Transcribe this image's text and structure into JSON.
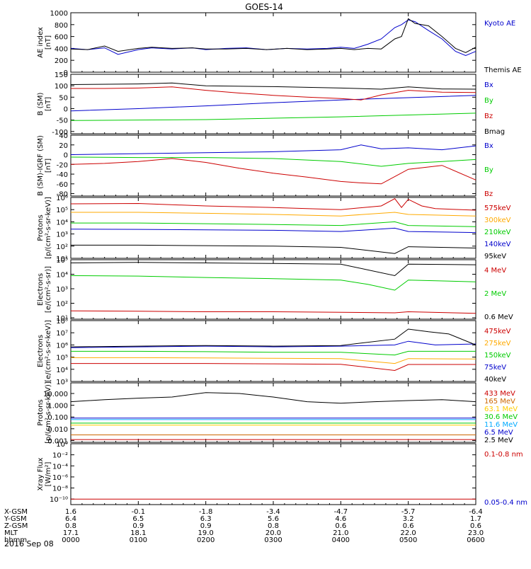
{
  "title": "GOES-14",
  "date_label": "2016 Sep 08",
  "footer": {
    "rows": [
      {
        "label": "X-GSM",
        "values": [
          "1.6",
          "-0.1",
          "-1.8",
          "-3.4",
          "-4.7",
          "-5.7",
          "-6.4"
        ]
      },
      {
        "label": "Y-GSM",
        "values": [
          "6.4",
          "6.5",
          "6.3",
          "5.6",
          "4.6",
          "3.2",
          "1.7"
        ]
      },
      {
        "label": "Z-GSM",
        "values": [
          "0.8",
          "0.9",
          "0.9",
          "0.8",
          "0.6",
          "0.6",
          "0.6"
        ]
      },
      {
        "label": "MLT",
        "values": [
          "17.1",
          "18.1",
          "19.0",
          "20.0",
          "21.0",
          "22.0",
          "23.0"
        ]
      },
      {
        "label": "hhmm",
        "values": [
          "0000",
          "0100",
          "0200",
          "0300",
          "0400",
          "0500",
          "0600"
        ]
      }
    ]
  },
  "chart_data": [
    {
      "type": "line",
      "ylabel": [
        "AE index",
        "[nT]"
      ],
      "ylim": [
        0,
        1000
      ],
      "yticks": [
        "0",
        "100",
        "200",
        "300",
        "400",
        "500",
        "600",
        "700",
        "800",
        "900",
        "1000"
      ],
      "ytick_labels": [
        {
          "value": 0,
          "label": "0"
        },
        {
          "value": 200,
          "label": "200"
        },
        {
          "value": 400,
          "label": "400"
        },
        {
          "value": 600,
          "label": "600"
        },
        {
          "value": 800,
          "label": "800"
        },
        {
          "value": 1000,
          "label": "1000"
        }
      ],
      "series": [
        {
          "name": "Kyoto AE",
          "color": "#0000cc",
          "x": [
            0,
            0.25,
            0.5,
            0.7,
            1.0,
            1.2,
            1.5,
            1.8,
            2.0,
            2.3,
            2.6,
            2.9,
            3.2,
            3.5,
            3.8,
            4.0,
            4.2,
            4.4,
            4.6,
            4.8,
            4.9,
            5.0,
            5.1,
            5.3,
            5.5,
            5.7,
            5.85,
            6.0
          ],
          "y": [
            400,
            380,
            410,
            300,
            380,
            410,
            390,
            410,
            380,
            400,
            410,
            380,
            400,
            390,
            400,
            420,
            400,
            470,
            560,
            750,
            800,
            880,
            850,
            700,
            560,
            350,
            280,
            350
          ]
        },
        {
          "name": "Themis AE",
          "color": "#000000",
          "x": [
            0,
            0.25,
            0.5,
            0.7,
            1.0,
            1.2,
            1.5,
            1.8,
            2.0,
            2.3,
            2.6,
            2.9,
            3.2,
            3.5,
            3.8,
            4.0,
            4.2,
            4.4,
            4.6,
            4.8,
            4.9,
            5.0,
            5.1,
            5.3,
            5.5,
            5.7,
            5.85,
            6.0
          ],
          "y": [
            390,
            380,
            440,
            350,
            400,
            420,
            400,
            410,
            390,
            390,
            400,
            380,
            400,
            380,
            390,
            400,
            380,
            400,
            390,
            560,
            600,
            900,
            820,
            780,
            600,
            400,
            330,
            420
          ]
        }
      ]
    },
    {
      "type": "line",
      "ylabel": [
        "B (SM)",
        "[nT]"
      ],
      "ylim": [
        -110,
        150
      ],
      "ytick_labels": [
        {
          "value": -100,
          "label": "-100"
        },
        {
          "value": -50,
          "label": "-50"
        },
        {
          "value": 0,
          "label": "0"
        },
        {
          "value": 50,
          "label": "50"
        },
        {
          "value": 100,
          "label": "100"
        },
        {
          "value": 150,
          "label": "150"
        }
      ],
      "series": [
        {
          "name": "Bx",
          "color": "#0000cc",
          "x": [
            0,
            1,
            2,
            3,
            4,
            5,
            6
          ],
          "y": [
            -10,
            0,
            12,
            26,
            38,
            48,
            58
          ]
        },
        {
          "name": "By",
          "color": "#00cc00",
          "x": [
            0,
            1,
            2,
            3,
            4,
            5,
            6
          ],
          "y": [
            -52,
            -50,
            -48,
            -42,
            -36,
            -28,
            -20
          ]
        },
        {
          "name": "Bz",
          "color": "#cc0000",
          "x": [
            0,
            0.5,
            1,
            1.5,
            2,
            2.5,
            3,
            3.5,
            4,
            4.3,
            4.6,
            5,
            5.5,
            6
          ],
          "y": [
            88,
            88,
            90,
            95,
            80,
            68,
            58,
            50,
            44,
            38,
            60,
            80,
            72,
            70
          ]
        },
        {
          "name": "Bmag",
          "color": "#000000",
          "x": [
            0,
            1,
            1.5,
            2,
            3,
            4,
            4.6,
            5,
            5.5,
            6
          ],
          "y": [
            105,
            108,
            112,
            100,
            96,
            90,
            85,
            95,
            86,
            85
          ]
        }
      ]
    },
    {
      "type": "line",
      "ylabel": [
        "B (SM)-IGRF (SM)",
        "[nT]"
      ],
      "ylim": [
        -85,
        40
      ],
      "ytick_labels": [
        {
          "value": -80,
          "label": "-80"
        },
        {
          "value": -60,
          "label": "-60"
        },
        {
          "value": -40,
          "label": "-40"
        },
        {
          "value": -20,
          "label": "-20"
        },
        {
          "value": 0,
          "label": "0"
        },
        {
          "value": 20,
          "label": "20"
        },
        {
          "value": 40,
          "label": "40"
        }
      ],
      "series": [
        {
          "name": "Bx",
          "color": "#0000cc",
          "x": [
            0,
            1,
            2,
            3,
            4,
            4.3,
            4.6,
            5,
            5.5,
            6
          ],
          "y": [
            0,
            2,
            4,
            6,
            10,
            20,
            12,
            14,
            10,
            18
          ]
        },
        {
          "name": "By",
          "color": "#00cc00",
          "x": [
            0,
            1,
            2,
            3,
            4,
            4.6,
            5,
            5.5,
            6
          ],
          "y": [
            -5,
            -6,
            -6,
            -8,
            -14,
            -24,
            -18,
            -14,
            -10
          ]
        },
        {
          "name": "Bz",
          "color": "#cc0000",
          "x": [
            0,
            0.5,
            1,
            1.5,
            2,
            2.5,
            3,
            3.5,
            4,
            4.3,
            4.6,
            5,
            5.5,
            6
          ],
          "y": [
            -20,
            -18,
            -14,
            -8,
            -16,
            -28,
            -38,
            -46,
            -55,
            -58,
            -60,
            -30,
            -22,
            -52
          ]
        }
      ]
    },
    {
      "type": "line",
      "ylabel": [
        "Protons",
        "[p/(cm²-s-sr-keV)]"
      ],
      "yscale": "log",
      "ylim": [
        10,
        1000000
      ],
      "ytick_labels": [
        {
          "value": 10,
          "label": "10¹"
        },
        {
          "value": 100,
          "label": "10²"
        },
        {
          "value": 1000,
          "label": "10³"
        },
        {
          "value": 10000,
          "label": "10⁴"
        },
        {
          "value": 100000,
          "label": "10⁵"
        },
        {
          "value": 1000000,
          "label": "10⁶"
        }
      ],
      "series": [
        {
          "name": "575keV",
          "color": "#cc0000",
          "x": [
            0,
            1,
            2,
            3,
            4,
            4.6,
            4.8,
            4.9,
            5.0,
            5.2,
            5.4,
            6
          ],
          "y": [
            300000,
            320000,
            200000,
            150000,
            100000,
            200000,
            800000,
            150000,
            700000,
            200000,
            120000,
            90000
          ]
        },
        {
          "name": "300keV",
          "color": "#ffaa00",
          "x": [
            0,
            1,
            2,
            3,
            4,
            4.8,
            5,
            6
          ],
          "y": [
            60000,
            60000,
            50000,
            40000,
            30000,
            60000,
            40000,
            30000
          ]
        },
        {
          "name": "210keV",
          "color": "#00cc00",
          "x": [
            0,
            1,
            2,
            3,
            4,
            4.8,
            5,
            6
          ],
          "y": [
            8000,
            8000,
            7000,
            6000,
            5000,
            10000,
            5000,
            4000
          ]
        },
        {
          "name": "140keV",
          "color": "#0000cc",
          "x": [
            0,
            1,
            2,
            3,
            4,
            4.8,
            5,
            6
          ],
          "y": [
            2500,
            2400,
            2200,
            2000,
            1600,
            3000,
            1600,
            1300
          ]
        },
        {
          "name": "95keV",
          "color": "#000000",
          "x": [
            0,
            1,
            2,
            3,
            4,
            4.8,
            5,
            6
          ],
          "y": [
            120,
            120,
            110,
            100,
            80,
            25,
            90,
            70
          ]
        }
      ]
    },
    {
      "type": "line",
      "ylabel": [
        "Electrons",
        "[e/(cm²-s-sr)]"
      ],
      "yscale": "log",
      "ylim": [
        8,
        100000
      ],
      "ytick_labels": [
        {
          "value": 10,
          "label": "10¹"
        },
        {
          "value": 100,
          "label": "10²"
        },
        {
          "value": 1000,
          "label": "10³"
        },
        {
          "value": 10000,
          "label": "10⁴"
        },
        {
          "value": 100000,
          "label": "10⁵"
        }
      ],
      "series": [
        {
          "name": "4 MeV",
          "color": "#cc0000",
          "x": [
            0,
            1,
            2,
            3,
            4,
            4.8,
            5,
            6
          ],
          "y": [
            30,
            28,
            26,
            26,
            24,
            22,
            26,
            20
          ]
        },
        {
          "name": "2 MeV",
          "color": "#00cc00",
          "x": [
            0,
            1,
            2,
            3,
            4,
            4.4,
            4.8,
            5,
            6
          ],
          "y": [
            8000,
            7500,
            6000,
            5000,
            4000,
            2000,
            800,
            4000,
            3000
          ]
        },
        {
          "name": "0.6 MeV",
          "color": "#000000",
          "x": [
            0,
            1,
            2,
            3,
            4,
            4.8,
            5,
            6
          ],
          "y": [
            60000,
            65000,
            60000,
            55000,
            50000,
            8000,
            50000,
            45000
          ]
        }
      ]
    },
    {
      "type": "line",
      "ylabel": [
        "Electrons",
        "[e/(cm²-s-sr-keV)]"
      ],
      "yscale": "log",
      "ylim": [
        1000,
        100000000
      ],
      "ytick_labels": [
        {
          "value": 1000,
          "label": "10³"
        },
        {
          "value": 10000,
          "label": "10⁴"
        },
        {
          "value": 100000,
          "label": "10⁵"
        },
        {
          "value": 1000000,
          "label": "10⁶"
        },
        {
          "value": 10000000,
          "label": "10⁷"
        },
        {
          "value": 100000000,
          "label": "10⁸"
        }
      ],
      "series": [
        {
          "name": "475keV",
          "color": "#cc0000",
          "x": [
            0,
            1,
            2,
            3,
            4,
            4.8,
            5,
            6
          ],
          "y": [
            30000,
            30000,
            30000,
            28000,
            26000,
            8000,
            25000,
            25000
          ]
        },
        {
          "name": "275keV",
          "color": "#ffaa00",
          "x": [
            0,
            1,
            2,
            3,
            4,
            4.8,
            5,
            6
          ],
          "y": [
            90000,
            90000,
            85000,
            80000,
            75000,
            30000,
            75000,
            70000
          ]
        },
        {
          "name": "150keV",
          "color": "#00cc00",
          "x": [
            0,
            1,
            2,
            3,
            4,
            4.8,
            5,
            6
          ],
          "y": [
            300000,
            300000,
            280000,
            250000,
            250000,
            150000,
            300000,
            300000
          ]
        },
        {
          "name": "75keV",
          "color": "#0000cc",
          "x": [
            0,
            1,
            2,
            3,
            4,
            4.8,
            5,
            5.4,
            6
          ],
          "y": [
            600000,
            700000,
            800000,
            700000,
            800000,
            1000000,
            2000000,
            1000000,
            1200000
          ]
        },
        {
          "name": "40keV",
          "color": "#000000",
          "x": [
            0,
            1,
            2,
            3,
            4,
            4.8,
            5,
            5.3,
            5.6,
            6
          ],
          "y": [
            700000,
            800000,
            900000,
            800000,
            900000,
            3000000,
            20000000,
            12000000,
            8000000,
            1000000
          ]
        }
      ]
    },
    {
      "type": "line",
      "ylabel": [
        "Protons",
        "[p/(cm²-s-sr-keV)]"
      ],
      "yscale": "log",
      "ylim": [
        0.0007,
        80
      ],
      "ytick_labels": [
        {
          "value": 0.001,
          "label": "0.001"
        },
        {
          "value": 0.01,
          "label": "0.010"
        },
        {
          "value": 0.1,
          "label": "0.100"
        },
        {
          "value": 1,
          "label": "1.000"
        },
        {
          "value": 10,
          "label": "10.000"
        }
      ],
      "series": [
        {
          "name": "433 MeV",
          "color": "#cc0000",
          "x": [
            0,
            6
          ],
          "y": [
            0.0012,
            0.0012
          ]
        },
        {
          "name": "165 MeV",
          "color": "#cc6600",
          "x": [
            0,
            6
          ],
          "y": [
            0.003,
            0.003
          ]
        },
        {
          "name": "63.1 MeV",
          "color": "#ffcc00",
          "x": [
            0,
            6
          ],
          "y": [
            0.02,
            0.02
          ]
        },
        {
          "name": "30.6 MeV",
          "color": "#00cc00",
          "x": [
            0,
            6
          ],
          "y": [
            0.03,
            0.03
          ]
        },
        {
          "name": "11.6 MeV",
          "color": "#00aaff",
          "x": [
            0,
            6
          ],
          "y": [
            0.06,
            0.06
          ]
        },
        {
          "name": "6.5 MeV",
          "color": "#0000cc",
          "x": [
            0,
            6
          ],
          "y": [
            0.08,
            0.08
          ]
        },
        {
          "name": "2.5 MeV",
          "color": "#000000",
          "x": [
            0,
            0.5,
            1,
            1.5,
            2,
            2.5,
            3,
            3.5,
            4,
            4.5,
            5,
            5.5,
            6
          ],
          "y": [
            2,
            3,
            4,
            5,
            12,
            10,
            5,
            2,
            1.5,
            2,
            2.5,
            3,
            2
          ]
        }
      ]
    },
    {
      "type": "line",
      "ylabel": [
        "Xray Flux",
        "[W/m²]"
      ],
      "yscale": "log",
      "ylim": [
        1e-11,
        1
      ],
      "ytick_labels": [
        {
          "value": 1e-10,
          "label": "10⁻¹⁰"
        },
        {
          "value": 1e-08,
          "label": "10⁻⁸"
        },
        {
          "value": 1e-06,
          "label": "10⁻⁶"
        },
        {
          "value": 0.0001,
          "label": "10⁻⁴"
        },
        {
          "value": 0.01,
          "label": "10⁻²"
        },
        {
          "value": 1,
          "label": "10⁰"
        }
      ],
      "series": [
        {
          "name": "0.1-0.8 nm",
          "color": "#cc0000",
          "x": [
            0,
            6
          ],
          "y": [
            1e-10,
            1e-10
          ]
        },
        {
          "name": "0.05-0.4 nm",
          "color": "#0000cc",
          "x": [],
          "y": []
        }
      ]
    }
  ]
}
